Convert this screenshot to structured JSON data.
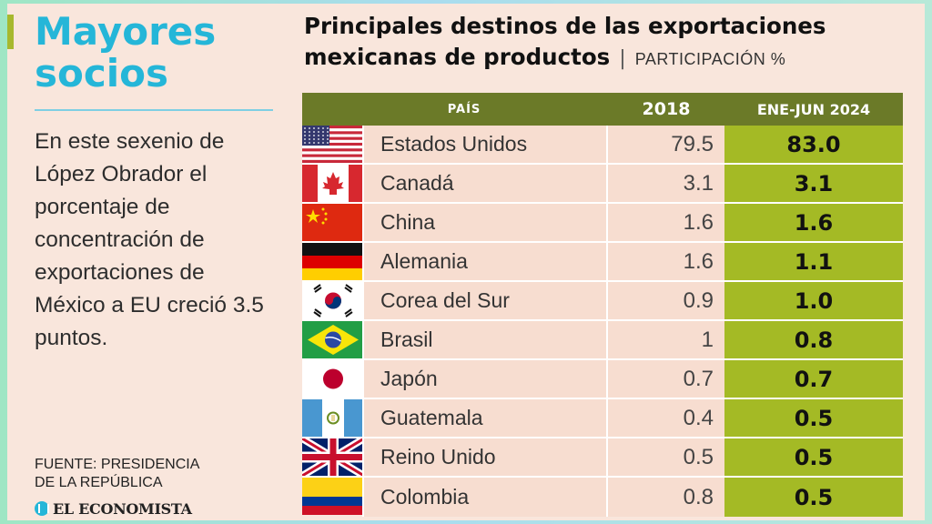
{
  "sidebar": {
    "title_line1": "Mayores",
    "title_line2": "socios",
    "body": "En este sexenio de López Obrador el porcentaje de concentración de exportaciones de México a EU creció 3.5 puntos.",
    "source_line1": "FUENTE: PRESIDENCIA",
    "source_line2": "DE LA REPÚBLICA",
    "logo_text": "EL ECONOMISTA"
  },
  "colors": {
    "header_bg": "#6b7a28",
    "highlight_col": "#a4ba25",
    "title_accent": "#25b6d8",
    "cell_bg": "#f7ddd0"
  },
  "chart_data": {
    "type": "table",
    "title_line1": "Principales destinos de las exportaciones",
    "title_line2": "mexicanas de productos",
    "unit_label": "PARTICIPACIÓN %",
    "columns": [
      "PAÍS",
      "2018",
      "ENE-JUN 2024"
    ],
    "rows": [
      {
        "country": "Estados Unidos",
        "flag": "us-flag-icon",
        "v2018": "79.5",
        "v2024": "83.0"
      },
      {
        "country": "Canadá",
        "flag": "canada-flag-icon",
        "v2018": "3.1",
        "v2024": "3.1"
      },
      {
        "country": "China",
        "flag": "china-flag-icon",
        "v2018": "1.6",
        "v2024": "1.6"
      },
      {
        "country": "Alemania",
        "flag": "germany-flag-icon",
        "v2018": "1.6",
        "v2024": "1.1"
      },
      {
        "country": "Corea del Sur",
        "flag": "south-korea-flag-icon",
        "v2018": "0.9",
        "v2024": "1.0"
      },
      {
        "country": "Brasil",
        "flag": "brazil-flag-icon",
        "v2018": "1",
        "v2024": "0.8"
      },
      {
        "country": "Japón",
        "flag": "japan-flag-icon",
        "v2018": "0.7",
        "v2024": "0.7"
      },
      {
        "country": "Guatemala",
        "flag": "guatemala-flag-icon",
        "v2018": "0.4",
        "v2024": "0.5"
      },
      {
        "country": "Reino Unido",
        "flag": "uk-flag-icon",
        "v2018": "0.5",
        "v2024": "0.5"
      },
      {
        "country": "Colombia",
        "flag": "colombia-flag-icon",
        "v2018": "0.8",
        "v2024": "0.5"
      }
    ]
  }
}
